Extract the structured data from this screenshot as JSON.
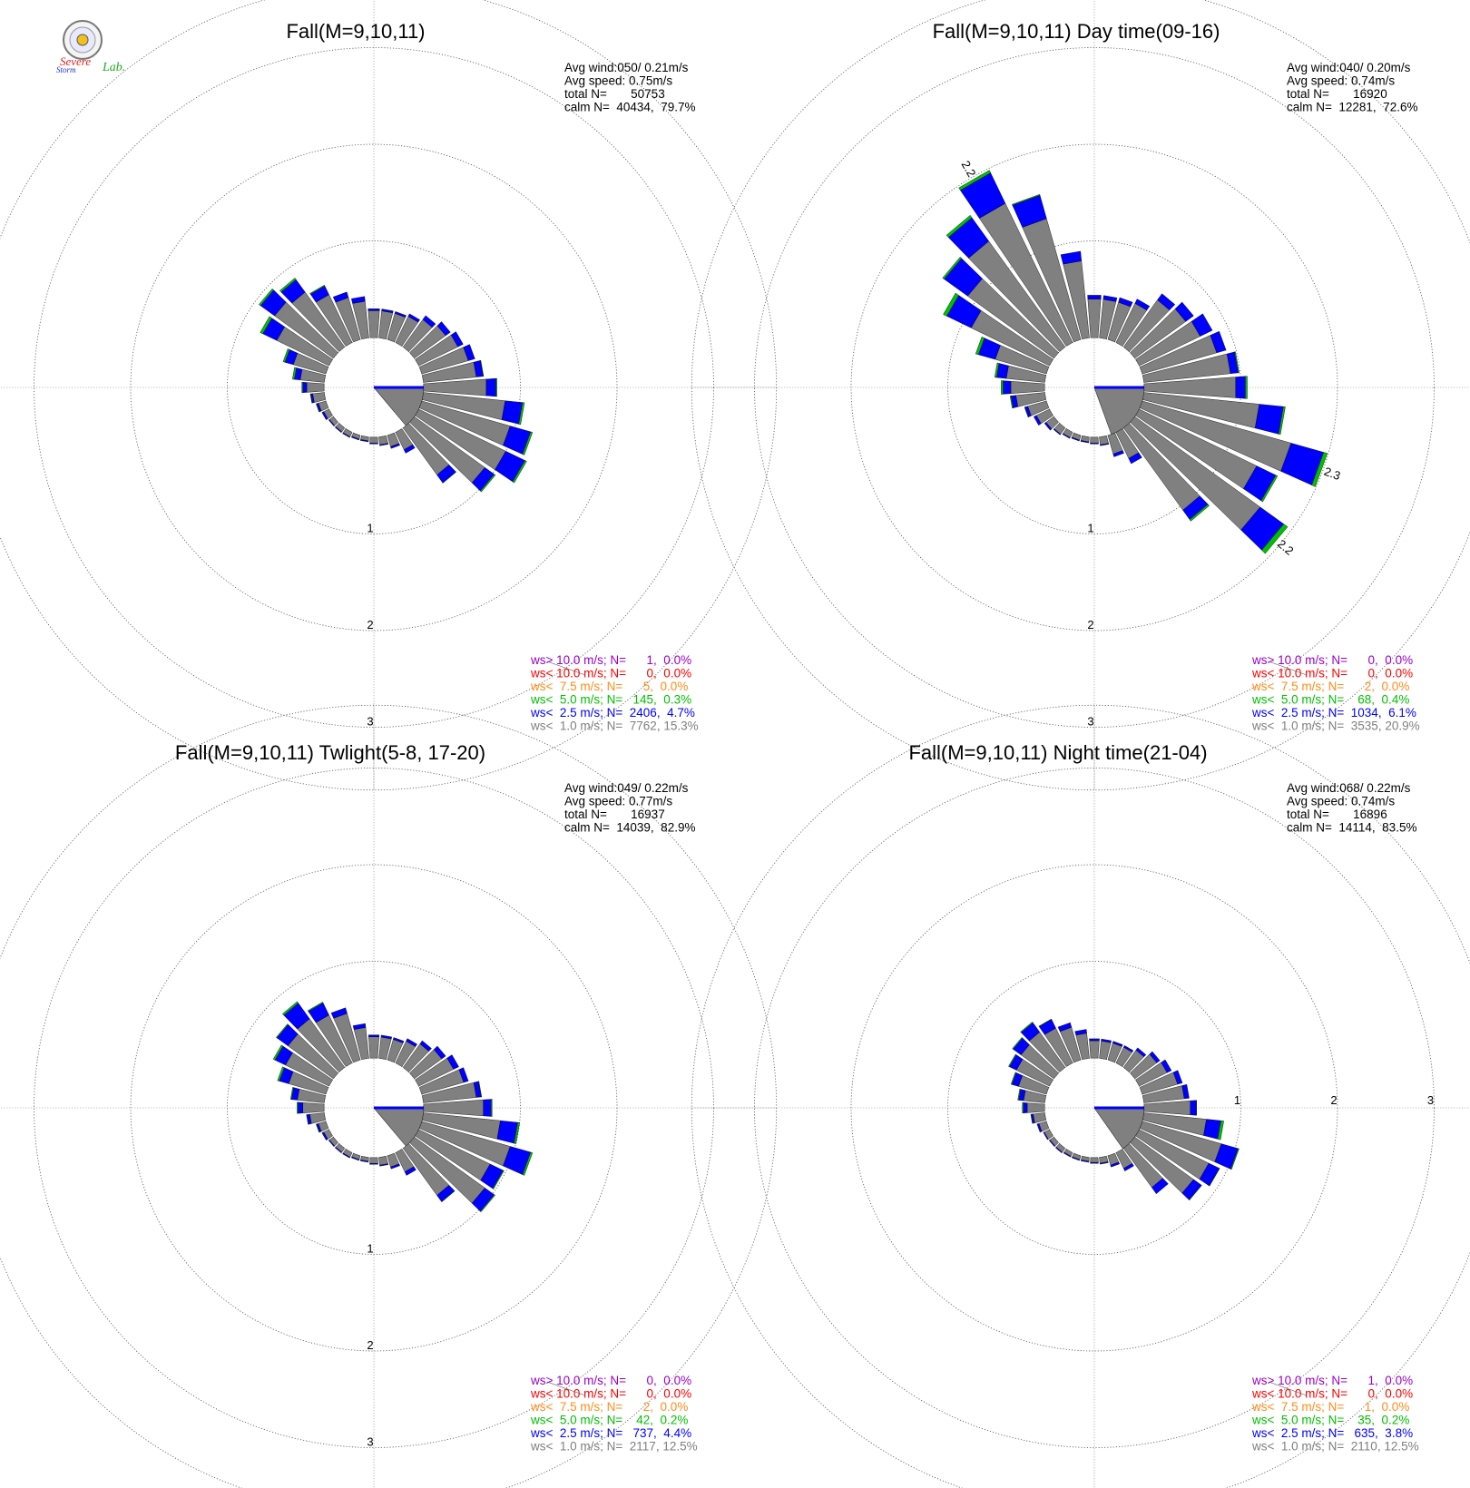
{
  "logo": {
    "words": [
      "Severe",
      "Storm",
      "Lab."
    ],
    "colors": {
      "red": "#dd2222",
      "blue": "#2233dd",
      "green": "#22aa22"
    }
  },
  "legend_colors": [
    "#9900cc",
    "#ff0000",
    "#ff8c1a",
    "#00c000",
    "#0000ff",
    "#7f7f7f"
  ],
  "bar_colors": {
    "lt1": "#808080",
    "lt2_5": "#0000ff",
    "lt5": "#00c000",
    "lt7_5": "#ff8c1a"
  },
  "chart_data": [
    {
      "type": "windrose",
      "title": "Fall(M=9,10,11)",
      "stats": [
        "Avg wind:050/ 0.21m/s",
        "Avg speed: 0.75m/s",
        "total N=       50753",
        "calm N=  40434,  79.7%"
      ],
      "rings": [
        "1",
        "2",
        "3"
      ],
      "ring_label_axis": "south",
      "calm_wedge": {
        "from_deg": 90,
        "to_deg": 140
      },
      "bar_labels": [],
      "legend": [
        "ws> 10.0 m/s; N=      1,  0.0%",
        "ws< 10.0 m/s; N=      0,  0.0%",
        "ws<  7.5 m/s; N=      5,  0.0%",
        "ws<  5.0 m/s; N=   145,  0.3%",
        "ws<  2.5 m/s; N=  2406,  4.7%",
        "ws<  1.0 m/s; N=  7762, 15.3%"
      ],
      "directions": [
        0,
        10,
        20,
        30,
        40,
        50,
        60,
        70,
        80,
        90,
        100,
        110,
        120,
        130,
        140,
        150,
        160,
        170,
        180,
        190,
        200,
        210,
        220,
        230,
        240,
        250,
        260,
        270,
        280,
        290,
        300,
        310,
        320,
        330,
        340,
        350
      ],
      "lt1": [
        0.28,
        0.28,
        0.28,
        0.3,
        0.35,
        0.4,
        0.45,
        0.5,
        0.55,
        0.65,
        0.85,
        0.95,
        1.0,
        0.9,
        0.6,
        0.2,
        0.12,
        0.08,
        0.06,
        0.04,
        0.04,
        0.05,
        0.05,
        0.05,
        0.06,
        0.08,
        0.12,
        0.18,
        0.25,
        0.35,
        0.6,
        0.75,
        0.7,
        0.55,
        0.45,
        0.38
      ],
      "lt2_5": [
        0.02,
        0.02,
        0.02,
        0.03,
        0.05,
        0.06,
        0.06,
        0.07,
        0.07,
        0.1,
        0.18,
        0.22,
        0.22,
        0.12,
        0.1,
        0.04,
        0.02,
        0.01,
        0.01,
        0.01,
        0.01,
        0.01,
        0.01,
        0.01,
        0.02,
        0.02,
        0.02,
        0.04,
        0.06,
        0.09,
        0.16,
        0.18,
        0.16,
        0.1,
        0.06,
        0.05
      ],
      "lt5": [
        0,
        0,
        0,
        0,
        0,
        0,
        0,
        0,
        0.005,
        0.01,
        0.02,
        0.02,
        0.02,
        0.015,
        0.005,
        0,
        0,
        0,
        0,
        0,
        0,
        0,
        0,
        0,
        0,
        0.005,
        0.005,
        0.01,
        0.02,
        0.02,
        0.03,
        0.02,
        0.02,
        0.01,
        0,
        0
      ],
      "lt7_5": [
        0,
        0,
        0,
        0,
        0,
        0,
        0,
        0,
        0,
        0,
        0,
        0,
        0,
        0,
        0,
        0,
        0,
        0,
        0,
        0,
        0,
        0,
        0,
        0,
        0,
        0,
        0,
        0,
        0,
        0,
        0,
        0,
        0,
        0,
        0,
        0
      ]
    },
    {
      "type": "windrose",
      "title": "Fall(M=9,10,11) Day time(09-16)",
      "stats": [
        "Avg wind:040/ 0.20m/s",
        "Avg speed: 0.74m/s",
        "total N=       16920",
        "calm N=  12281,  72.6%"
      ],
      "rings": [
        "1",
        "2",
        "3"
      ],
      "ring_label_axis": "south",
      "calm_wedge": {
        "from_deg": 90,
        "to_deg": 160
      },
      "bar_labels": [
        {
          "dir": 110,
          "text": "2.3"
        },
        {
          "dir": 130,
          "text": "2.2"
        },
        {
          "dir": 330,
          "text": "2.2"
        }
      ],
      "legend": [
        "ws> 10.0 m/s; N=      0,  0.0%",
        "ws< 10.0 m/s; N=      0,  0.0%",
        "ws<  7.5 m/s; N=      2,  0.0%",
        "ws<  5.0 m/s; N=    68,  0.4%",
        "ws<  2.5 m/s; N=  1034,  6.1%",
        "ws<  1.0 m/s; N=  3535, 20.9%"
      ],
      "directions": [
        0,
        10,
        20,
        30,
        40,
        50,
        60,
        70,
        80,
        90,
        100,
        110,
        120,
        130,
        140,
        150,
        160,
        170,
        180,
        190,
        200,
        210,
        220,
        230,
        240,
        250,
        260,
        270,
        280,
        290,
        300,
        310,
        320,
        330,
        340,
        350
      ],
      "lt1": [
        0.4,
        0.4,
        0.4,
        0.45,
        0.6,
        0.65,
        0.7,
        0.8,
        0.9,
        0.95,
        1.2,
        1.6,
        1.35,
        1.6,
        1.05,
        0.3,
        0.2,
        0.08,
        0.06,
        0.05,
        0.05,
        0.06,
        0.08,
        0.1,
        0.15,
        0.2,
        0.3,
        0.35,
        0.4,
        0.55,
        0.9,
        1.1,
        1.35,
        1.6,
        1.3,
        0.8
      ],
      "lt2_5": [
        0.04,
        0.04,
        0.05,
        0.05,
        0.08,
        0.1,
        0.14,
        0.1,
        0.08,
        0.1,
        0.25,
        0.35,
        0.22,
        0.3,
        0.12,
        0.06,
        0.03,
        0.01,
        0.01,
        0.01,
        0.01,
        0.01,
        0.01,
        0.02,
        0.03,
        0.03,
        0.05,
        0.08,
        0.1,
        0.18,
        0.28,
        0.3,
        0.3,
        0.35,
        0.25,
        0.1
      ],
      "lt5": [
        0,
        0,
        0,
        0,
        0,
        0,
        0,
        0,
        0.01,
        0.02,
        0.02,
        0.04,
        0.02,
        0.05,
        0.02,
        0,
        0,
        0,
        0,
        0,
        0,
        0,
        0,
        0,
        0,
        0.005,
        0.01,
        0.02,
        0.02,
        0.03,
        0.04,
        0.02,
        0.03,
        0.03,
        0.01,
        0
      ],
      "lt7_5": [
        0,
        0,
        0,
        0,
        0,
        0,
        0,
        0,
        0,
        0,
        0,
        0,
        0,
        0,
        0,
        0,
        0,
        0,
        0,
        0,
        0,
        0,
        0,
        0,
        0,
        0,
        0,
        0,
        0,
        0,
        0,
        0,
        0,
        0,
        0,
        0
      ]
    },
    {
      "type": "windrose",
      "title": "Fall(M=9,10,11) Twlight(5-8, 17-20)",
      "stats": [
        "Avg wind:049/ 0.22m/s",
        "Avg speed: 0.77m/s",
        "total N=       16937",
        "calm N=  14039,  82.9%"
      ],
      "rings": [
        "1",
        "2",
        "3"
      ],
      "ring_label_axis": "south",
      "calm_wedge": {
        "from_deg": 90,
        "to_deg": 140
      },
      "bar_labels": [],
      "legend": [
        "ws> 10.0 m/s; N=      0,  0.0%",
        "ws< 10.0 m/s; N=      0,  0.0%",
        "ws<  7.5 m/s; N=      2,  0.0%",
        "ws<  5.0 m/s; N=    42,  0.2%",
        "ws<  2.5 m/s; N=   737,  4.4%",
        "ws<  1.0 m/s; N=  2117, 12.5%"
      ],
      "directions": [
        0,
        10,
        20,
        30,
        40,
        50,
        60,
        70,
        80,
        90,
        100,
        110,
        120,
        130,
        140,
        150,
        160,
        170,
        180,
        190,
        200,
        210,
        220,
        230,
        240,
        250,
        260,
        270,
        280,
        290,
        300,
        310,
        320,
        330,
        340,
        350
      ],
      "lt1": [
        0.22,
        0.22,
        0.22,
        0.25,
        0.3,
        0.35,
        0.4,
        0.45,
        0.55,
        0.62,
        0.8,
        0.95,
        0.82,
        0.9,
        0.6,
        0.22,
        0.12,
        0.08,
        0.06,
        0.04,
        0.04,
        0.05,
        0.05,
        0.05,
        0.06,
        0.08,
        0.15,
        0.22,
        0.28,
        0.4,
        0.5,
        0.58,
        0.62,
        0.55,
        0.5,
        0.32
      ],
      "lt2_5": [
        0.02,
        0.02,
        0.02,
        0.03,
        0.04,
        0.05,
        0.06,
        0.05,
        0.05,
        0.08,
        0.18,
        0.22,
        0.15,
        0.12,
        0.08,
        0.04,
        0.02,
        0.01,
        0.01,
        0.01,
        0.01,
        0.01,
        0.01,
        0.01,
        0.02,
        0.02,
        0.03,
        0.05,
        0.06,
        0.1,
        0.12,
        0.14,
        0.2,
        0.14,
        0.06,
        0.04
      ],
      "lt5": [
        0,
        0,
        0,
        0,
        0,
        0,
        0,
        0,
        0.005,
        0.01,
        0.02,
        0.02,
        0.01,
        0.01,
        0.005,
        0,
        0,
        0,
        0,
        0,
        0,
        0,
        0,
        0,
        0,
        0.005,
        0.005,
        0.01,
        0.01,
        0.02,
        0.02,
        0.01,
        0.02,
        0.01,
        0,
        0
      ],
      "lt7_5": [
        0,
        0,
        0,
        0,
        0,
        0,
        0,
        0,
        0,
        0,
        0,
        0,
        0,
        0,
        0,
        0,
        0,
        0,
        0,
        0,
        0,
        0,
        0,
        0,
        0,
        0,
        0,
        0,
        0,
        0,
        0,
        0,
        0,
        0,
        0,
        0
      ]
    },
    {
      "type": "windrose",
      "title": "Fall(M=9,10,11) Night time(21-04)",
      "stats": [
        "Avg wind:068/ 0.22m/s",
        "Avg speed: 0.74m/s",
        "total N=       16896",
        "calm N=  14114,  83.5%"
      ],
      "rings": [
        "1",
        "2",
        "3"
      ],
      "ring_label_axis": "east",
      "calm_wedge": {
        "from_deg": 90,
        "to_deg": 145
      },
      "bar_labels": [],
      "legend": [
        "ws> 10.0 m/s; N=      1,  0.0%",
        "ws< 10.0 m/s; N=      0,  0.0%",
        "ws<  7.5 m/s; N=      1,  0.0%",
        "ws<  5.0 m/s; N=    35,  0.2%",
        "ws<  2.5 m/s; N=   635,  3.8%",
        "ws<  1.0 m/s; N=  2110, 12.5%"
      ],
      "directions": [
        0,
        10,
        20,
        30,
        40,
        50,
        60,
        70,
        80,
        90,
        100,
        110,
        120,
        130,
        140,
        150,
        160,
        170,
        180,
        190,
        200,
        210,
        220,
        230,
        240,
        250,
        260,
        270,
        280,
        290,
        300,
        310,
        320,
        330,
        340,
        350
      ],
      "lt1": [
        0.18,
        0.18,
        0.18,
        0.18,
        0.22,
        0.28,
        0.32,
        0.38,
        0.42,
        0.48,
        0.65,
        0.85,
        0.8,
        0.75,
        0.5,
        0.18,
        0.1,
        0.06,
        0.05,
        0.04,
        0.04,
        0.04,
        0.05,
        0.05,
        0.06,
        0.08,
        0.12,
        0.18,
        0.22,
        0.3,
        0.38,
        0.42,
        0.45,
        0.4,
        0.35,
        0.26
      ],
      "lt2_5": [
        0.02,
        0.02,
        0.02,
        0.02,
        0.03,
        0.04,
        0.05,
        0.05,
        0.05,
        0.06,
        0.15,
        0.18,
        0.12,
        0.1,
        0.08,
        0.03,
        0.02,
        0.01,
        0.01,
        0.01,
        0.01,
        0.01,
        0.01,
        0.01,
        0.01,
        0.02,
        0.02,
        0.04,
        0.05,
        0.07,
        0.08,
        0.1,
        0.12,
        0.1,
        0.05,
        0.04
      ],
      "lt5": [
        0,
        0,
        0,
        0,
        0,
        0,
        0,
        0,
        0,
        0.005,
        0.03,
        0.01,
        0.005,
        0.005,
        0,
        0,
        0,
        0,
        0,
        0,
        0,
        0,
        0,
        0,
        0,
        0,
        0.005,
        0.01,
        0.01,
        0.01,
        0.01,
        0.01,
        0.01,
        0.005,
        0,
        0
      ],
      "lt7_5": [
        0,
        0,
        0,
        0,
        0,
        0,
        0,
        0,
        0,
        0,
        0,
        0,
        0,
        0,
        0,
        0,
        0,
        0,
        0,
        0,
        0,
        0,
        0,
        0,
        0,
        0,
        0,
        0,
        0,
        0,
        0,
        0,
        0,
        0,
        0,
        0
      ]
    }
  ]
}
